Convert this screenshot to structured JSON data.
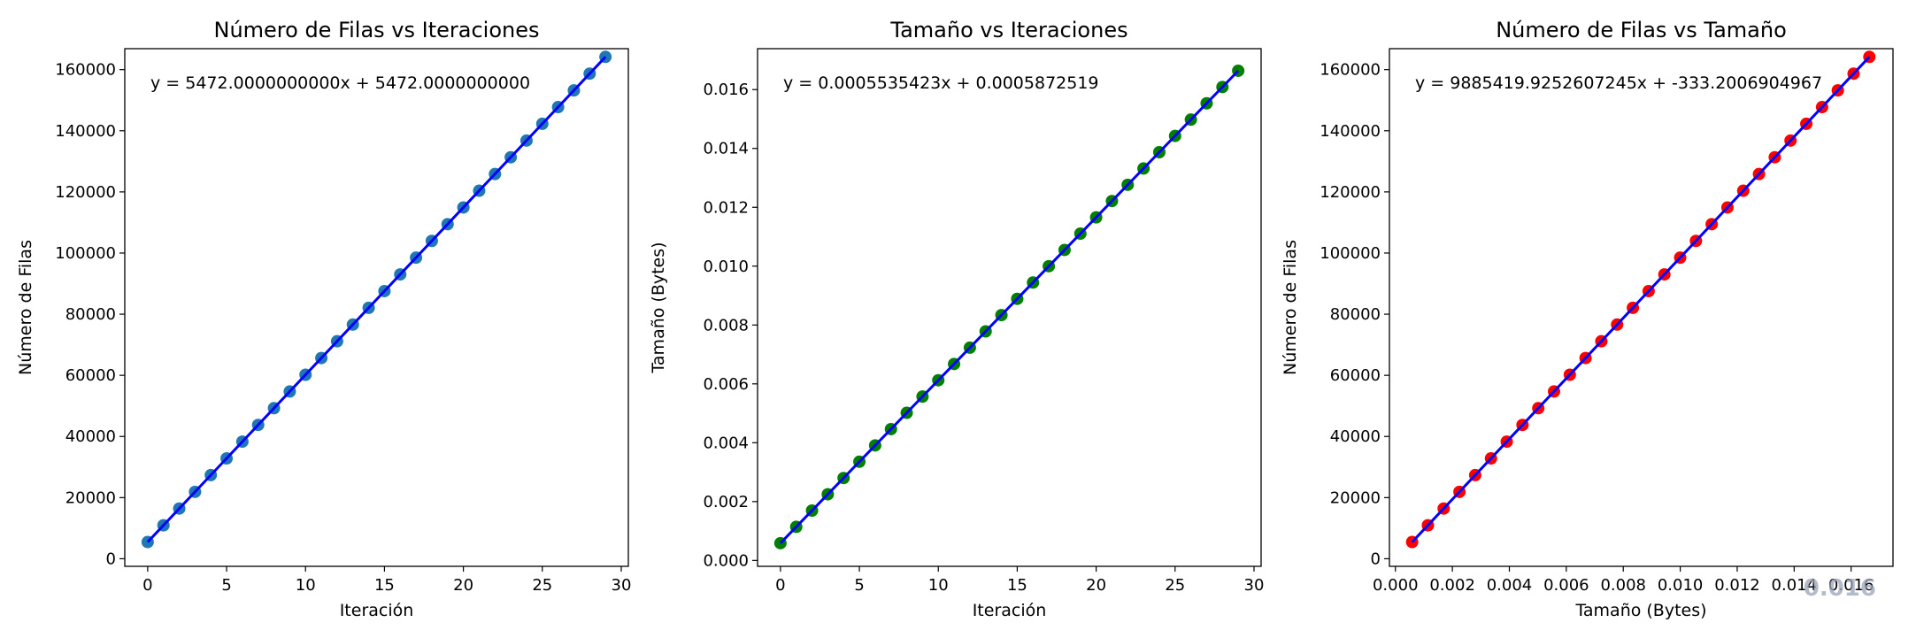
{
  "chart_data": [
    {
      "type": "scatter",
      "title": "Número de Filas vs Iteraciones",
      "xlabel": "Iteración",
      "ylabel": "Número de Filas",
      "xlim": [
        -1.45,
        30.45
      ],
      "ylim": [
        -2478,
        166854
      ],
      "xticks": [
        0,
        5,
        10,
        15,
        20,
        25,
        30
      ],
      "yticks": [
        0,
        20000,
        40000,
        60000,
        80000,
        100000,
        120000,
        140000,
        160000
      ],
      "grid": false,
      "annotation": "y = 5472.0000000000x + 5472.0000000000",
      "point_color": "#1f77b4",
      "line_color": "#0000ff",
      "x": [
        0,
        1,
        2,
        3,
        4,
        5,
        6,
        7,
        8,
        9,
        10,
        11,
        12,
        13,
        14,
        15,
        16,
        17,
        18,
        19,
        20,
        21,
        22,
        23,
        24,
        25,
        26,
        27,
        28,
        29
      ],
      "y": [
        5472,
        10944,
        16416,
        21888,
        27360,
        32832,
        38304,
        43776,
        49248,
        54720,
        60192,
        65664,
        71136,
        76608,
        82080,
        87552,
        93024,
        98496,
        103968,
        109440,
        114912,
        120384,
        125856,
        131328,
        136800,
        142272,
        147744,
        153216,
        158688,
        164160
      ],
      "fit": {
        "slope": 5472.0,
        "intercept": 5472.0
      }
    },
    {
      "type": "scatter",
      "title": "Tamaño vs Iteraciones",
      "xlabel": "Iteración",
      "ylabel": "Tamaño (Bytes)",
      "xlim": [
        -1.45,
        30.45
      ],
      "ylim": [
        -0.0002,
        0.01739
      ],
      "xticks": [
        0,
        5,
        10,
        15,
        20,
        25,
        30
      ],
      "yticks": [
        0.0,
        0.002,
        0.004,
        0.006,
        0.008,
        0.01,
        0.012,
        0.014,
        0.016
      ],
      "ytick_decimals": 3,
      "grid": false,
      "annotation": "y = 0.0005535423x + 0.0005872519",
      "point_color": "#008000",
      "line_color": "#0000ff",
      "x": [
        0,
        1,
        2,
        3,
        4,
        5,
        6,
        7,
        8,
        9,
        10,
        11,
        12,
        13,
        14,
        15,
        16,
        17,
        18,
        19,
        20,
        21,
        22,
        23,
        24,
        25,
        26,
        27,
        28,
        29
      ],
      "y": [
        0.000587,
        0.001141,
        0.001694,
        0.002248,
        0.002801,
        0.003355,
        0.003909,
        0.004462,
        0.005016,
        0.005569,
        0.006123,
        0.006676,
        0.00723,
        0.007783,
        0.008337,
        0.00889,
        0.009444,
        0.009998,
        0.010551,
        0.011105,
        0.011658,
        0.012212,
        0.012765,
        0.013319,
        0.013872,
        0.014426,
        0.01498,
        0.015533,
        0.016087,
        0.01664
      ],
      "fit": {
        "slope": 0.0005535423,
        "intercept": 0.0005872519
      }
    },
    {
      "type": "scatter",
      "title": "Número de Filas vs Tamaño",
      "xlabel": "Tamaño (Bytes)",
      "ylabel": "Número de Filas",
      "xlim": [
        -0.00021,
        0.01747
      ],
      "ylim": [
        -2478,
        166854
      ],
      "xticks": [
        0.0,
        0.002,
        0.004,
        0.006,
        0.008,
        0.01,
        0.012,
        0.014,
        0.016
      ],
      "xtick_decimals": 3,
      "yticks": [
        0,
        20000,
        40000,
        60000,
        80000,
        100000,
        120000,
        140000,
        160000
      ],
      "grid": false,
      "annotation": "y = 9885419.9252607245x + -333.2006904967",
      "point_color": "#ff0000",
      "line_color": "#0000ff",
      "x": [
        0.000587,
        0.001141,
        0.001694,
        0.002248,
        0.002801,
        0.003355,
        0.003909,
        0.004462,
        0.005016,
        0.005569,
        0.006123,
        0.006676,
        0.00723,
        0.007783,
        0.008337,
        0.00889,
        0.009444,
        0.009998,
        0.010551,
        0.011105,
        0.011658,
        0.012212,
        0.012765,
        0.013319,
        0.013872,
        0.014426,
        0.01498,
        0.015533,
        0.016087,
        0.01664
      ],
      "y": [
        5472,
        10944,
        16416,
        21888,
        27360,
        32832,
        38304,
        43776,
        49248,
        54720,
        60192,
        65664,
        71136,
        76608,
        82080,
        87552,
        93024,
        98496,
        103968,
        109440,
        114912,
        120384,
        125856,
        131328,
        136800,
        142272,
        147744,
        153216,
        158688,
        164160
      ],
      "fit": {
        "slope": 9885419.925260724,
        "intercept": -333.2006904967
      }
    }
  ],
  "watermark": "0.016"
}
